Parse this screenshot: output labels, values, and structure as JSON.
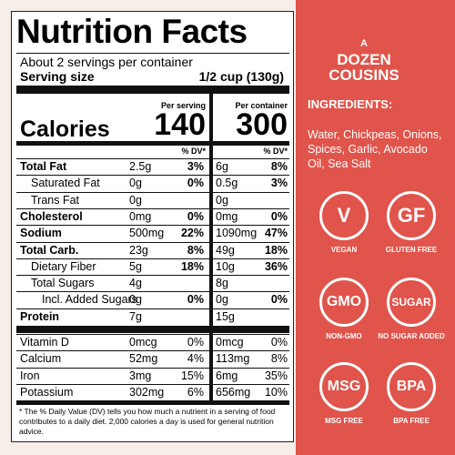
{
  "label": {
    "title": "Nutrition Facts",
    "servings": "About 2 servings per container",
    "serving_size_label": "Serving size",
    "serving_size": "1/2 cup (130g)",
    "per_serving": "Per serving",
    "per_container": "Per container",
    "calories_label": "Calories",
    "calories_serving": "140",
    "calories_container": "300",
    "dv_header": "% DV*",
    "rows": [
      [
        "Total Fat",
        "2.5g",
        "3%",
        "6g",
        "8%"
      ],
      [
        "Saturated Fat",
        "0g",
        "0%",
        "0.5g",
        "3%"
      ],
      [
        "Trans Fat",
        "0g",
        null,
        "0g",
        null
      ],
      [
        "Cholesterol",
        "0mg",
        "0%",
        "0mg",
        "0%"
      ],
      [
        "Sodium",
        "500mg",
        "22%",
        "1090mg",
        "47%"
      ],
      [
        "Total Carb.",
        "23g",
        "8%",
        "49g",
        "18%"
      ],
      [
        "Dietary Fiber",
        "5g",
        "18%",
        "10g",
        "36%"
      ],
      [
        "Total Sugars",
        "4g",
        null,
        "8g",
        null
      ],
      [
        "Incl. Added Sugars",
        "0g",
        "0%",
        "0g",
        "0%"
      ],
      [
        "Protein",
        "7g",
        null,
        "15g",
        null
      ]
    ],
    "vitamins": [
      [
        "Vitamin D",
        "0mcg",
        "0%",
        "0mcg",
        "0%"
      ],
      [
        "Calcium",
        "52mg",
        "4%",
        "113mg",
        "8%"
      ],
      [
        "Iron",
        "3mg",
        "15%",
        "6mg",
        "35%"
      ],
      [
        "Potassium",
        "302mg",
        "6%",
        "656mg",
        "10%"
      ]
    ],
    "footnote": "* The % Daily Value (DV) tells you how much a nutrient in a serving of food contributes to a daily diet. 2,000 calories a day is used for general nutrition advice."
  },
  "brand": {
    "lines": [
      "A",
      "DOZEN",
      "COUSINS"
    ]
  },
  "ingredients": {
    "title": "INGREDIENTS:",
    "text": "Water, Chickpeas, Onions, Spices, Garlic, Avocado Oil, Sea Salt"
  },
  "badges": [
    {
      "icon": "V",
      "label": "VEGAN"
    },
    {
      "icon": "GF",
      "label": "GLUTEN FREE"
    },
    {
      "icon": "GMO",
      "label": "NON-GMO"
    },
    {
      "icon": "SUGAR",
      "label": "NO SUGAR ADDED"
    },
    {
      "icon": "MSG",
      "label": "MSG FREE"
    },
    {
      "icon": "BPA",
      "label": "BPA FREE"
    }
  ]
}
